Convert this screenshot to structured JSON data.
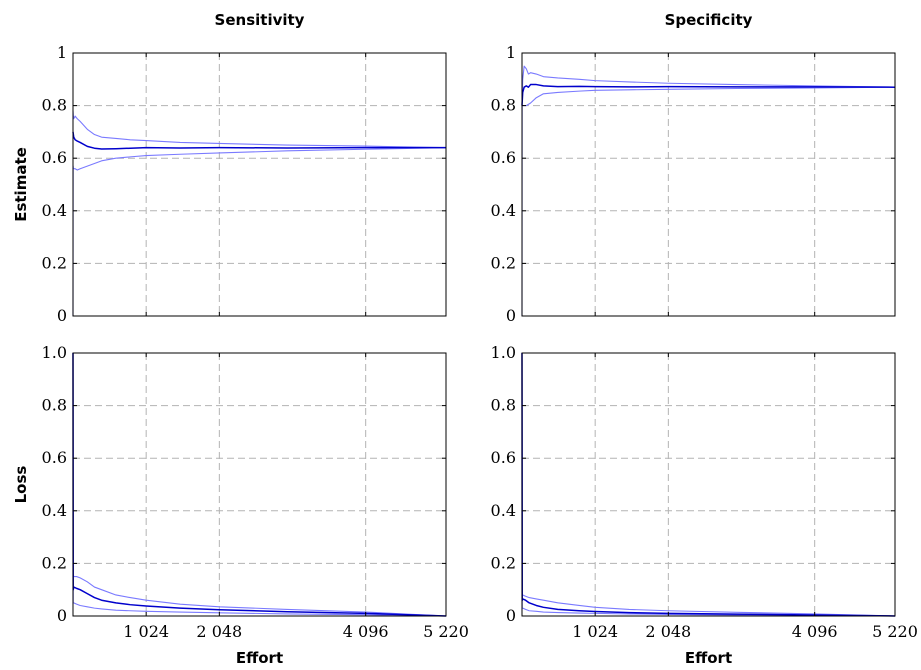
{
  "chart_data": [
    {
      "type": "line",
      "column_title": "Sensitivity",
      "ylabel": "Estimate",
      "xlabel": "",
      "xlim": [
        0,
        5220
      ],
      "ylim": [
        0,
        1
      ],
      "xticks": [
        1024,
        2048,
        4096,
        5220
      ],
      "xtick_labels": [],
      "yticks": [
        0,
        0.2,
        0.4,
        0.6,
        0.8,
        1
      ],
      "ytick_labels": [
        "0",
        "0.2",
        "0.4",
        "0.6",
        "0.8",
        "1"
      ],
      "grid": true,
      "colors": {
        "estimate": "#0000cc",
        "bounds": "#7a7aff"
      },
      "series": [
        {
          "role": "upper",
          "x": [
            0,
            5,
            10,
            30,
            60,
            100,
            200,
            300,
            400,
            600,
            800,
            1024,
            1500,
            2048,
            3000,
            4096,
            5220
          ],
          "y": [
            0.78,
            0.76,
            0.75,
            0.76,
            0.75,
            0.74,
            0.71,
            0.69,
            0.68,
            0.675,
            0.67,
            0.667,
            0.66,
            0.656,
            0.65,
            0.646,
            0.64
          ]
        },
        {
          "role": "estimate",
          "x": [
            0,
            5,
            10,
            30,
            60,
            100,
            200,
            300,
            400,
            600,
            800,
            1024,
            1500,
            2048,
            3000,
            4096,
            5220
          ],
          "y": [
            0.7,
            0.69,
            0.68,
            0.67,
            0.665,
            0.66,
            0.645,
            0.638,
            0.635,
            0.636,
            0.638,
            0.64,
            0.639,
            0.64,
            0.639,
            0.64,
            0.64
          ]
        },
        {
          "role": "lower",
          "x": [
            0,
            2,
            5,
            30,
            60,
            100,
            200,
            300,
            400,
            600,
            800,
            1024,
            1500,
            2048,
            3000,
            4096,
            5220
          ],
          "y": [
            0.0,
            0.57,
            0.56,
            0.56,
            0.555,
            0.56,
            0.57,
            0.58,
            0.59,
            0.6,
            0.605,
            0.61,
            0.615,
            0.62,
            0.628,
            0.634,
            0.64
          ]
        }
      ]
    },
    {
      "type": "line",
      "column_title": "Specificity",
      "ylabel": "",
      "xlabel": "",
      "xlim": [
        0,
        5220
      ],
      "ylim": [
        0,
        1
      ],
      "xticks": [
        1024,
        2048,
        4096,
        5220
      ],
      "xtick_labels": [],
      "yticks": [
        0,
        0.2,
        0.4,
        0.6,
        0.8,
        1
      ],
      "ytick_labels": [
        "0",
        "0.2",
        "0.4",
        "0.6",
        "0.8",
        "1"
      ],
      "grid": true,
      "colors": {
        "estimate": "#0000cc",
        "bounds": "#7a7aff"
      },
      "series": [
        {
          "role": "upper",
          "x": [
            0,
            10,
            30,
            60,
            90,
            120,
            200,
            300,
            500,
            800,
            1024,
            1500,
            2048,
            3000,
            4096,
            5220
          ],
          "y": [
            0.8,
            0.9,
            0.95,
            0.94,
            0.92,
            0.925,
            0.92,
            0.91,
            0.905,
            0.9,
            0.895,
            0.89,
            0.885,
            0.88,
            0.875,
            0.87
          ]
        },
        {
          "role": "estimate",
          "x": [
            0,
            10,
            30,
            60,
            90,
            120,
            200,
            300,
            500,
            800,
            1024,
            1500,
            2048,
            3000,
            4096,
            5220
          ],
          "y": [
            0.8,
            0.85,
            0.87,
            0.875,
            0.87,
            0.88,
            0.88,
            0.875,
            0.872,
            0.873,
            0.872,
            0.871,
            0.872,
            0.871,
            0.871,
            0.87
          ]
        },
        {
          "role": "lower",
          "x": [
            0,
            2,
            10,
            60,
            120,
            200,
            300,
            500,
            800,
            1024,
            1500,
            2048,
            3000,
            4096,
            5220
          ],
          "y": [
            0.0,
            0.8,
            0.8,
            0.8,
            0.81,
            0.83,
            0.845,
            0.85,
            0.855,
            0.858,
            0.86,
            0.862,
            0.865,
            0.867,
            0.87
          ]
        }
      ]
    },
    {
      "type": "line",
      "column_title": "",
      "ylabel": "Loss",
      "xlabel": "Effort",
      "xlim": [
        0,
        5220
      ],
      "ylim": [
        0,
        1
      ],
      "xticks": [
        1024,
        2048,
        4096,
        5220
      ],
      "xtick_labels": [
        "1 024",
        "2 048",
        "4 096",
        "5 220"
      ],
      "yticks": [
        0,
        0.2,
        0.4,
        0.6,
        0.8,
        1
      ],
      "ytick_labels": [
        "0",
        "0.2",
        "0.4",
        "0.6",
        "0.8",
        "1.0"
      ],
      "grid": true,
      "colors": {
        "estimate": "#0000cc",
        "bounds": "#7a7aff"
      },
      "series": [
        {
          "role": "upper",
          "x": [
            0,
            3,
            10,
            50,
            100,
            200,
            300,
            400,
            600,
            800,
            1024,
            1500,
            2048,
            3000,
            4096,
            5220
          ],
          "y": [
            1.0,
            0.16,
            0.15,
            0.15,
            0.145,
            0.13,
            0.11,
            0.1,
            0.08,
            0.07,
            0.06,
            0.045,
            0.035,
            0.025,
            0.015,
            0.0
          ]
        },
        {
          "role": "estimate",
          "x": [
            0,
            3,
            10,
            50,
            100,
            200,
            300,
            400,
            600,
            800,
            1024,
            1500,
            2048,
            3000,
            4096,
            5220
          ],
          "y": [
            1.0,
            0.1,
            0.11,
            0.105,
            0.1,
            0.085,
            0.07,
            0.06,
            0.05,
            0.043,
            0.038,
            0.03,
            0.024,
            0.016,
            0.01,
            0.0
          ]
        },
        {
          "role": "lower",
          "x": [
            0,
            3,
            10,
            50,
            100,
            200,
            300,
            400,
            600,
            800,
            1024,
            1500,
            2048,
            3000,
            4096,
            5220
          ],
          "y": [
            1.0,
            0.05,
            0.05,
            0.045,
            0.04,
            0.035,
            0.03,
            0.027,
            0.022,
            0.02,
            0.018,
            0.015,
            0.012,
            0.008,
            0.005,
            0.0
          ]
        }
      ]
    },
    {
      "type": "line",
      "column_title": "",
      "ylabel": "",
      "xlabel": "Effort",
      "xlim": [
        0,
        5220
      ],
      "ylim": [
        0,
        1
      ],
      "xticks": [
        1024,
        2048,
        4096,
        5220
      ],
      "xtick_labels": [
        "1 024",
        "2 048",
        "4 096",
        "5 220"
      ],
      "yticks": [
        0,
        0.2,
        0.4,
        0.6,
        0.8,
        1
      ],
      "ytick_labels": [
        "0",
        "0.2",
        "0.4",
        "0.6",
        "0.8",
        "1.0"
      ],
      "grid": true,
      "colors": {
        "estimate": "#0000cc",
        "bounds": "#7a7aff"
      },
      "series": [
        {
          "role": "upper",
          "x": [
            0,
            3,
            10,
            50,
            100,
            200,
            300,
            500,
            800,
            1024,
            1500,
            2048,
            3000,
            4096,
            5220
          ],
          "y": [
            1.0,
            0.08,
            0.08,
            0.075,
            0.07,
            0.065,
            0.06,
            0.05,
            0.04,
            0.033,
            0.025,
            0.02,
            0.014,
            0.008,
            0.0
          ]
        },
        {
          "role": "estimate",
          "x": [
            0,
            3,
            10,
            50,
            100,
            200,
            300,
            500,
            800,
            1024,
            1500,
            2048,
            3000,
            4096,
            5220
          ],
          "y": [
            1.0,
            0.06,
            0.065,
            0.06,
            0.05,
            0.04,
            0.033,
            0.025,
            0.02,
            0.017,
            0.013,
            0.01,
            0.007,
            0.004,
            0.0
          ]
        },
        {
          "role": "lower",
          "x": [
            0,
            3,
            10,
            50,
            100,
            200,
            300,
            500,
            800,
            1024,
            1500,
            2048,
            3000,
            4096,
            5220
          ],
          "y": [
            1.0,
            0.03,
            0.03,
            0.025,
            0.02,
            0.018,
            0.015,
            0.013,
            0.011,
            0.01,
            0.008,
            0.006,
            0.004,
            0.002,
            0.0
          ]
        }
      ]
    }
  ]
}
